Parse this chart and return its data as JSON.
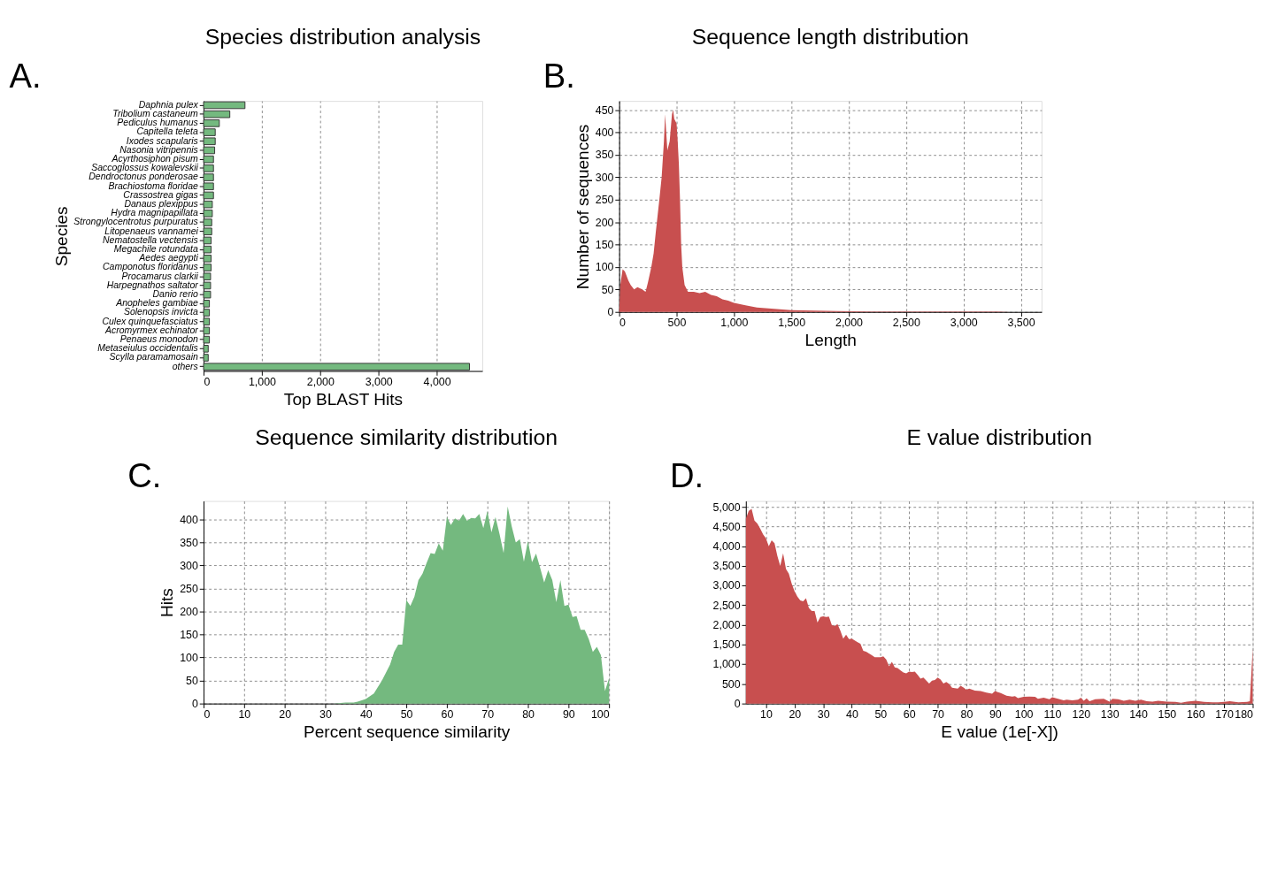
{
  "chart_data": [
    {
      "type": "bar",
      "orientation": "horizontal",
      "title": "Species distribution analysis",
      "xlabel": "Top BLAST Hits",
      "ylabel": "Species",
      "annotations": [
        "A."
      ],
      "color": "#74b97f",
      "grid": "x",
      "categories": [
        "Daphnia pulex",
        "Tribolium castaneum",
        "Pediculus humanus",
        "Capitella teleta",
        "Ixodes scapularis",
        "Nasonia vitripennis",
        "Acyrthosiphon pisum",
        "Saccoglossus kowalevskii",
        "Dendroctonus ponderosae",
        "Brachiostoma floridae",
        "Crassostrea gigas",
        "Danaus plexippus",
        "Hydra magnipapillata",
        "Strongylocentrotus purpuratus",
        "Litopenaeus vannamei",
        "Nematostella vectensis",
        "Megachile rotundata",
        "Aedes aegypti",
        "Camponotus floridanus",
        "Procamarus clarkii",
        "Harpegnathos saltator",
        "Danio rerio",
        "Anopheles gambiae",
        "Solenopsis invicta",
        "Culex quinquefasciatus",
        "Acromyrmex echinator",
        "Penaeus monodon",
        "Metaseiulus occidentalis",
        "Scylla paramamosain",
        "others"
      ],
      "values": [
        710,
        450,
        270,
        200,
        200,
        190,
        170,
        170,
        170,
        170,
        170,
        150,
        150,
        140,
        140,
        130,
        130,
        130,
        130,
        120,
        120,
        120,
        100,
        100,
        100,
        100,
        100,
        80,
        80,
        4560
      ],
      "xlim": [
        0,
        4780
      ],
      "xticks": [
        0,
        {
          "value": 1000,
          "label": "1,000"
        },
        {
          "value": 2000,
          "label": "2,000"
        },
        {
          "value": 3000,
          "label": "3,000"
        },
        {
          "value": 4000,
          "label": "4,000"
        }
      ]
    },
    {
      "type": "area",
      "title": "Sequence length distribution",
      "xlabel": "Length",
      "ylabel": "Number of sequences",
      "annotations": [
        "B."
      ],
      "color": "#c84f4f",
      "grid": true,
      "x": [
        0,
        10,
        30,
        50,
        80,
        100,
        130,
        160,
        200,
        230,
        250,
        280,
        300,
        320,
        350,
        370,
        390,
        400,
        410,
        420,
        440,
        460,
        470,
        480,
        500,
        510,
        520,
        530,
        540,
        550,
        570,
        600,
        650,
        700,
        750,
        800,
        850,
        900,
        950,
        1000,
        1100,
        1200,
        1300,
        1400,
        1500,
        1700,
        1900,
        2200,
        2500,
        3000,
        3300,
        3400
      ],
      "values": [
        0,
        60,
        95,
        90,
        70,
        60,
        50,
        55,
        50,
        45,
        65,
        100,
        130,
        180,
        250,
        300,
        380,
        440,
        400,
        360,
        380,
        440,
        450,
        430,
        420,
        380,
        330,
        250,
        150,
        100,
        60,
        45,
        45,
        42,
        45,
        38,
        35,
        28,
        25,
        20,
        15,
        10,
        8,
        6,
        4,
        3,
        2,
        1,
        1,
        1,
        1,
        0
      ],
      "xlim": [
        0,
        3680
      ],
      "xticks": [
        0,
        500,
        {
          "value": 1000,
          "label": "1,000"
        },
        {
          "value": 1500,
          "label": "1,500"
        },
        {
          "value": 2000,
          "label": "2,000"
        },
        {
          "value": 2500,
          "label": "2,500"
        },
        {
          "value": 3000,
          "label": "3,000"
        },
        {
          "value": 3500,
          "label": "3,500"
        }
      ],
      "ylim": [
        0,
        470
      ],
      "yticks": [
        0,
        50,
        100,
        150,
        200,
        250,
        300,
        350,
        400,
        450
      ]
    },
    {
      "type": "area",
      "title": "Sequence similarity distribution",
      "xlabel": "Percent sequence similarity",
      "ylabel": "Hits",
      "annotations": [
        "C."
      ],
      "color": "#74b97f",
      "grid": true,
      "x": [
        32,
        35,
        37,
        38,
        40,
        42,
        44,
        46,
        47,
        48,
        49,
        50,
        51,
        52,
        53,
        54,
        55,
        56,
        57,
        58,
        59,
        60,
        61,
        62,
        63,
        64,
        65,
        66,
        67,
        68,
        69,
        70,
        71,
        72,
        73,
        74,
        75,
        76,
        77,
        78,
        79,
        80,
        81,
        82,
        83,
        84,
        85,
        86,
        87,
        88,
        89,
        90,
        91,
        92,
        93,
        94,
        95,
        96,
        97,
        98,
        99,
        100
      ],
      "values": [
        0,
        2,
        2,
        4,
        10,
        22,
        50,
        85,
        112,
        128,
        128,
        225,
        212,
        232,
        268,
        282,
        305,
        327,
        325,
        348,
        332,
        405,
        388,
        402,
        397,
        412,
        397,
        403,
        402,
        412,
        381,
        418,
        372,
        405,
        368,
        327,
        428,
        385,
        350,
        357,
        308,
        353,
        307,
        326,
        295,
        263,
        290,
        268,
        220,
        268,
        212,
        215,
        188,
        190,
        160,
        160,
        140,
        112,
        123,
        105,
        27,
        55
      ],
      "xlim": [
        0,
        100
      ],
      "xticks": [
        0,
        10,
        20,
        30,
        40,
        50,
        60,
        70,
        80,
        90,
        100
      ],
      "ylim": [
        0,
        440
      ],
      "yticks": [
        0,
        50,
        100,
        150,
        200,
        250,
        300,
        350,
        400
      ]
    },
    {
      "type": "area",
      "title": "E value distribution",
      "xlabel": "E value (1e[-X])",
      "annotations": [
        "D."
      ],
      "color": "#c84f4f",
      "grid": true,
      "x": [
        3,
        4,
        5,
        6,
        7,
        8,
        9,
        10,
        11,
        12,
        13,
        14,
        15,
        16,
        17,
        18,
        19,
        20,
        21,
        22,
        23,
        24,
        25,
        26,
        27,
        28,
        29,
        30,
        31,
        32,
        33,
        34,
        35,
        36,
        37,
        38,
        39,
        40,
        42,
        43,
        44,
        45,
        47,
        48,
        50,
        51,
        52,
        53,
        54,
        55,
        56,
        58,
        59,
        60,
        61,
        62,
        63,
        64,
        65,
        67,
        68,
        69,
        70,
        71,
        72,
        73,
        74,
        75,
        77,
        78,
        79,
        80,
        81,
        83,
        85,
        87,
        89,
        90,
        91,
        92,
        94,
        96,
        97,
        98,
        100,
        102,
        104,
        105,
        107,
        109,
        110,
        112,
        114,
        115,
        117,
        119,
        120,
        121,
        122,
        123,
        125,
        128,
        130,
        131,
        133,
        135,
        137,
        139,
        141,
        143,
        145,
        147,
        150,
        153,
        155,
        157,
        160,
        163,
        166,
        168,
        170,
        172,
        175,
        178,
        179,
        180
      ],
      "values": [
        4700,
        4900,
        4950,
        4650,
        4580,
        4450,
        4300,
        4200,
        4000,
        4150,
        4080,
        3750,
        3500,
        3820,
        3420,
        3300,
        3050,
        2850,
        2720,
        2620,
        2600,
        2680,
        2430,
        2350,
        2350,
        2060,
        2200,
        2220,
        2200,
        2210,
        2000,
        1970,
        2020,
        1850,
        1650,
        1750,
        1640,
        1650,
        1560,
        1520,
        1340,
        1320,
        1230,
        1180,
        1180,
        1200,
        1120,
        950,
        1060,
        920,
        900,
        790,
        770,
        810,
        800,
        810,
        730,
        630,
        660,
        510,
        580,
        600,
        660,
        610,
        510,
        550,
        500,
        400,
        380,
        450,
        410,
        350,
        380,
        330,
        320,
        280,
        250,
        320,
        290,
        270,
        200,
        180,
        190,
        140,
        170,
        180,
        170,
        120,
        150,
        110,
        160,
        120,
        80,
        100,
        80,
        100,
        150,
        70,
        130,
        60,
        110,
        120,
        50,
        120,
        110,
        70,
        100,
        70,
        100,
        60,
        50,
        70,
        50,
        40,
        20,
        50,
        70,
        40,
        30,
        30,
        40,
        60,
        30,
        40,
        60,
        1400
      ],
      "xlim": [
        3,
        180
      ],
      "xticks": [
        10,
        20,
        30,
        40,
        50,
        60,
        70,
        80,
        90,
        100,
        110,
        120,
        130,
        140,
        150,
        160,
        170,
        180
      ],
      "ylim": [
        0,
        5150
      ],
      "yticks": [
        0,
        500,
        {
          "value": 1000,
          "label": "1,000"
        },
        {
          "value": 1500,
          "label": "1,500"
        },
        {
          "value": 2000,
          "label": "2,000"
        },
        {
          "value": 2500,
          "label": "2,500"
        },
        {
          "value": 3000,
          "label": "3,000"
        },
        {
          "value": 3500,
          "label": "3,500"
        },
        {
          "value": 4000,
          "label": "4,000"
        },
        {
          "value": 4500,
          "label": "4,500"
        },
        {
          "value": 5000,
          "label": "5,000"
        }
      ]
    }
  ]
}
